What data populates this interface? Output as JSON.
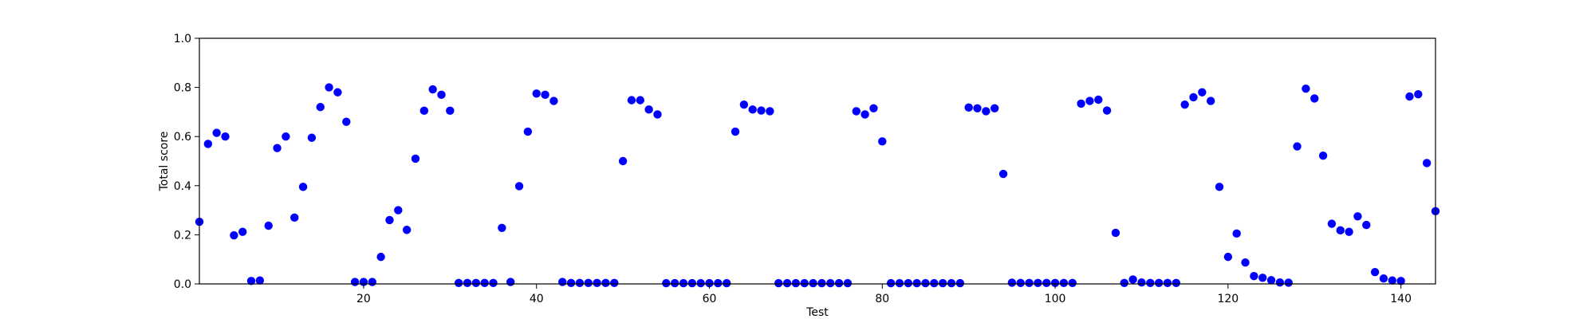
{
  "chart_data": {
    "type": "scatter",
    "xlabel": "Test",
    "ylabel": "Total score",
    "xlim": [
      1,
      144
    ],
    "ylim": [
      0,
      1.0
    ],
    "x_ticks": [
      20,
      40,
      60,
      80,
      100,
      120,
      140
    ],
    "y_ticks": [
      0.0,
      0.2,
      0.4,
      0.6,
      0.8,
      1.0
    ],
    "x_tick_labels": [
      "20",
      "40",
      "60",
      "80",
      "100",
      "120",
      "140"
    ],
    "y_tick_labels": [
      "0.0",
      "0.2",
      "0.4",
      "0.6",
      "0.8",
      "1.0"
    ],
    "grid": false,
    "marker_color": "#0000ff",
    "series": [
      {
        "x": [
          1,
          2,
          3,
          4,
          5,
          6,
          7,
          8,
          9,
          10,
          11,
          12,
          13,
          14,
          15,
          16,
          17,
          18,
          19,
          20,
          21,
          22,
          23,
          24,
          25,
          26,
          27,
          28,
          29,
          30,
          31,
          32,
          33,
          34,
          35,
          36,
          37,
          38,
          39,
          40,
          41,
          42,
          43,
          44,
          45,
          46,
          47,
          48,
          49,
          50,
          51,
          52,
          53,
          54,
          55,
          56,
          57,
          58,
          59,
          60,
          61,
          62,
          63,
          64,
          65,
          66,
          67,
          68,
          69,
          70,
          71,
          72,
          73,
          74,
          75,
          76,
          77,
          78,
          79,
          80,
          81,
          82,
          83,
          84,
          85,
          86,
          87,
          88,
          89,
          90,
          91,
          92,
          93,
          94,
          95,
          96,
          97,
          98,
          99,
          100,
          101,
          102,
          103,
          104,
          105,
          106,
          107,
          108,
          109,
          110,
          111,
          112,
          113,
          114,
          115,
          116,
          117,
          118,
          119,
          120,
          121,
          122,
          123,
          124,
          125,
          126,
          127,
          128,
          129,
          130,
          131,
          132,
          133,
          134,
          135,
          136,
          137,
          138,
          139,
          140,
          141,
          142,
          143,
          144
        ],
        "values": [
          0.253,
          0.57,
          0.615,
          0.6,
          0.198,
          0.212,
          0.012,
          0.014,
          0.237,
          0.553,
          0.6,
          0.27,
          0.395,
          0.595,
          0.72,
          0.8,
          0.78,
          0.66,
          0.008,
          0.008,
          0.008,
          0.11,
          0.26,
          0.3,
          0.22,
          0.51,
          0.705,
          0.792,
          0.77,
          0.705,
          0.004,
          0.004,
          0.004,
          0.004,
          0.004,
          0.228,
          0.008,
          0.398,
          0.62,
          0.775,
          0.77,
          0.745,
          0.008,
          0.004,
          0.004,
          0.004,
          0.004,
          0.004,
          0.004,
          0.5,
          0.748,
          0.748,
          0.71,
          0.69,
          0.003,
          0.003,
          0.003,
          0.003,
          0.003,
          0.003,
          0.003,
          0.003,
          0.62,
          0.73,
          0.71,
          0.706,
          0.703,
          0.003,
          0.003,
          0.003,
          0.003,
          0.003,
          0.003,
          0.003,
          0.003,
          0.003,
          0.703,
          0.69,
          0.715,
          0.58,
          0.003,
          0.003,
          0.003,
          0.003,
          0.003,
          0.003,
          0.003,
          0.003,
          0.003,
          0.718,
          0.715,
          0.703,
          0.715,
          0.448,
          0.005,
          0.004,
          0.004,
          0.004,
          0.004,
          0.004,
          0.004,
          0.004,
          0.734,
          0.745,
          0.75,
          0.706,
          0.208,
          0.004,
          0.018,
          0.006,
          0.004,
          0.004,
          0.004,
          0.004,
          0.73,
          0.76,
          0.78,
          0.745,
          0.395,
          0.11,
          0.205,
          0.087,
          0.032,
          0.025,
          0.015,
          0.006,
          0.005,
          0.56,
          0.795,
          0.755,
          0.522,
          0.245,
          0.218,
          0.212,
          0.275,
          0.24,
          0.048,
          0.022,
          0.014,
          0.012,
          0.763,
          0.772,
          0.492,
          0.296
        ]
      }
    ]
  }
}
